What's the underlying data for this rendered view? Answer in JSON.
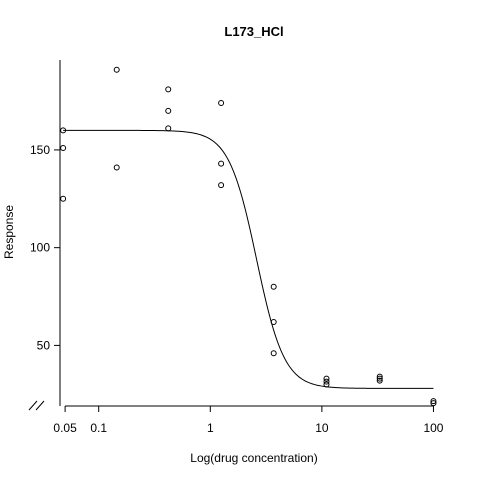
{
  "chart_data": {
    "type": "scatter",
    "title": "L173_HCl",
    "xlabel": "Log(drug concentration)",
    "ylabel": "Response",
    "x_scale": "log10",
    "xlim": [
      0.045,
      135
    ],
    "ylim": [
      19,
      196
    ],
    "x_ticks": [
      0.05,
      0.1,
      1,
      10,
      100
    ],
    "x_tick_labels": [
      "0.05",
      "0.1",
      "1",
      "10",
      "100"
    ],
    "y_ticks": [
      50,
      100,
      150
    ],
    "y_tick_labels": [
      "50",
      "100",
      "150"
    ],
    "axis_break_marker": "//",
    "grid": false,
    "legend": "none",
    "points": [
      {
        "x": 0.048,
        "y": 160
      },
      {
        "x": 0.048,
        "y": 151
      },
      {
        "x": 0.048,
        "y": 125
      },
      {
        "x": 0.145,
        "y": 191
      },
      {
        "x": 0.145,
        "y": 141
      },
      {
        "x": 0.42,
        "y": 181
      },
      {
        "x": 0.42,
        "y": 170
      },
      {
        "x": 0.42,
        "y": 161
      },
      {
        "x": 1.25,
        "y": 174
      },
      {
        "x": 1.25,
        "y": 143
      },
      {
        "x": 1.25,
        "y": 132
      },
      {
        "x": 3.7,
        "y": 80
      },
      {
        "x": 3.7,
        "y": 62
      },
      {
        "x": 3.7,
        "y": 46
      },
      {
        "x": 11,
        "y": 33
      },
      {
        "x": 11,
        "y": 31.5
      },
      {
        "x": 11,
        "y": 30
      },
      {
        "x": 33,
        "y": 34
      },
      {
        "x": 33,
        "y": 33
      },
      {
        "x": 33,
        "y": 32
      },
      {
        "x": 100,
        "y": 21.5
      },
      {
        "x": 100,
        "y": 20.5
      }
    ],
    "fit_curve": {
      "model": "4-parameter logistic",
      "top": 160,
      "bottom": 28,
      "ec50": 2.6,
      "hill": 3.5,
      "x_range": [
        0.048,
        100
      ]
    },
    "colors": {
      "points": "#000000",
      "curve": "#000000"
    }
  }
}
